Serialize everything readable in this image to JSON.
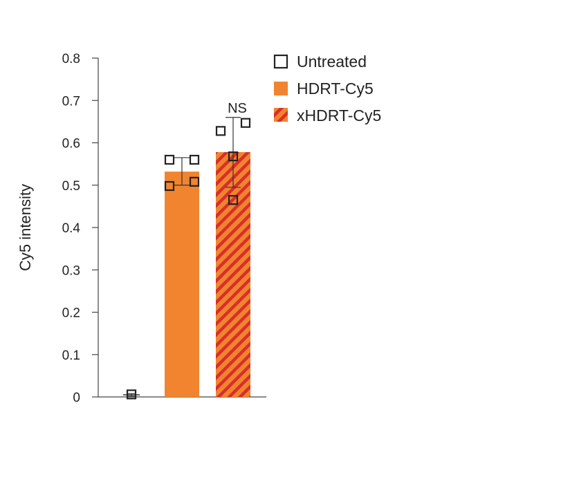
{
  "chart_data": {
    "type": "bar",
    "ylabel": "Cy5 intensity",
    "xlabel": "",
    "ylim": [
      0,
      0.8
    ],
    "yticks": [
      0,
      0.1,
      0.2,
      0.3,
      0.4,
      0.5,
      0.6,
      0.7,
      0.8
    ],
    "ytick_labels": [
      "0",
      "0.1",
      "0.2",
      "0.3",
      "0.4",
      "0.5",
      "0.6",
      "0.7",
      "0.8"
    ],
    "legend_position": "top-right",
    "grid": false,
    "series": [
      {
        "name": "Untreated",
        "value": 0.005,
        "error_low": 0.002,
        "error_high": 0.008,
        "points": [
          0.006
        ],
        "style": "open-square",
        "color": "#ffffff"
      },
      {
        "name": "HDRT-Cy5",
        "value": 0.532,
        "error_low": 0.5,
        "error_high": 0.565,
        "points": [
          0.56,
          0.56,
          0.498,
          0.508
        ],
        "style": "solid",
        "color": "#F0842F"
      },
      {
        "name": "xHDRT-Cy5",
        "value": 0.578,
        "error_low": 0.495,
        "error_high": 0.66,
        "points": [
          0.628,
          0.647,
          0.568,
          0.465
        ],
        "style": "striped",
        "color": "#F0842F",
        "stripe_color": "#D92E2A"
      }
    ],
    "annotations": [
      {
        "text": "NS",
        "series": "xHDRT-Cy5"
      }
    ]
  }
}
